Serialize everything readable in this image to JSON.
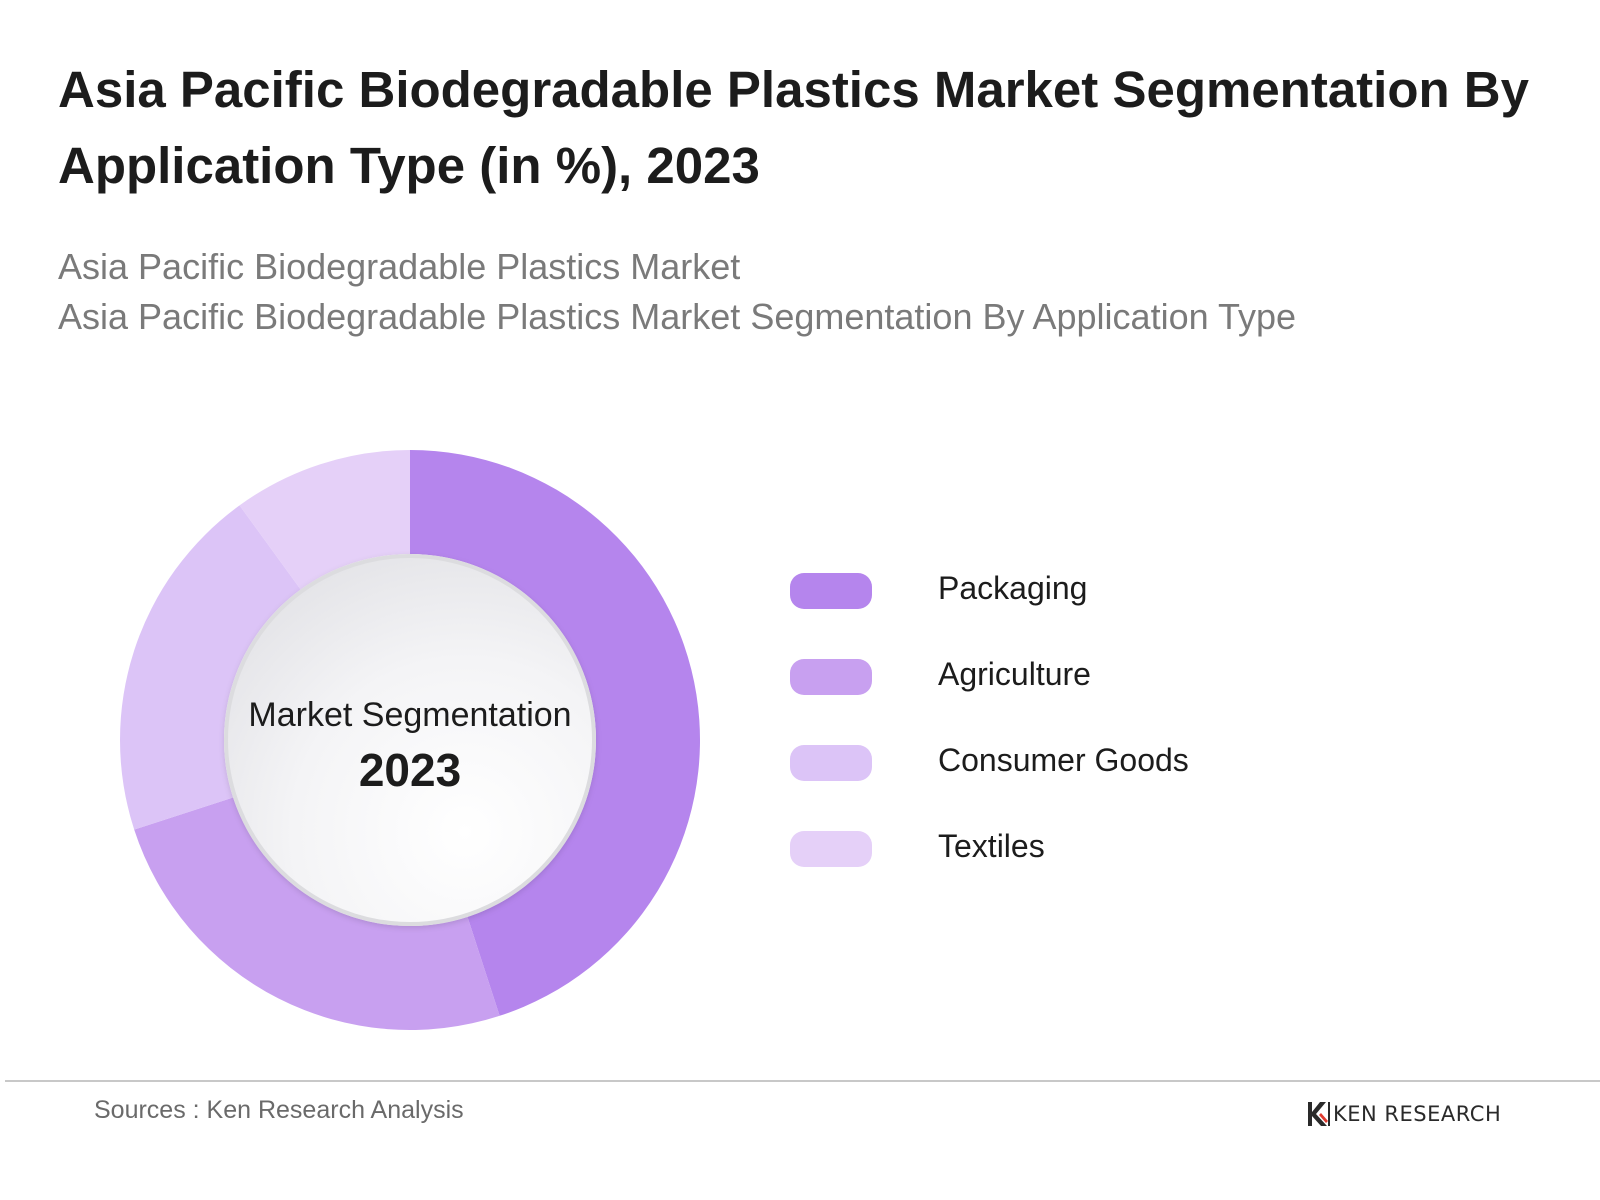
{
  "title": "Asia Pacific Biodegradable Plastics Market Segmentation By Application Type (in %), 2023",
  "subtitle_lines": [
    "Asia Pacific Biodegradable Plastics Market",
    "Asia Pacific Biodegradable Plastics Market Segmentation By Application Type"
  ],
  "center": {
    "label": "Market Segmentation",
    "year": "2023"
  },
  "chart_data": {
    "type": "pie",
    "variant": "donut",
    "categories": [
      "Packaging",
      "Agriculture",
      "Consumer Goods",
      "Textiles"
    ],
    "values": [
      45,
      25,
      20,
      10
    ],
    "colors": [
      "#b585ed",
      "#c8a0f0",
      "#dcc4f7",
      "#e5d0f8"
    ],
    "legend_position": "right"
  },
  "footer": {
    "sources": "Sources : Ken Research Analysis",
    "brand": "KEN RESEARCH"
  }
}
